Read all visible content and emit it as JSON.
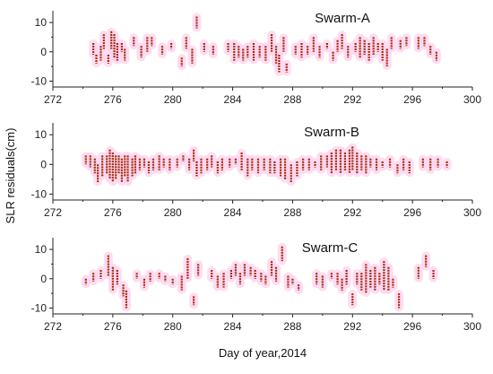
{
  "chart_data": {
    "type": "scatter",
    "xlabel": "Day of year,2014",
    "ylabel": "SLR residuals(cm)",
    "xlim": [
      272,
      300
    ],
    "ylim": [
      -12,
      14
    ],
    "xticks": [
      272,
      276,
      280,
      284,
      288,
      292,
      296,
      300
    ],
    "yticks": [
      -10,
      0,
      10
    ],
    "grid": false,
    "colors": {
      "points": "#a52a0a",
      "halo": "#ffd6f0",
      "axis": "#222222"
    },
    "panels": [
      {
        "title": "Swarm-A",
        "segments": [
          [
            274.7,
            -1,
            3
          ],
          [
            274.9,
            -4,
            -1
          ],
          [
            275.2,
            -3,
            2
          ],
          [
            275.4,
            1,
            6
          ],
          [
            275.7,
            -4,
            -1
          ],
          [
            275.9,
            1,
            7
          ],
          [
            276.1,
            -2,
            6
          ],
          [
            276.3,
            -3,
            3
          ],
          [
            276.6,
            0,
            3
          ],
          [
            276.8,
            -3,
            1
          ],
          [
            277.4,
            2,
            5
          ],
          [
            277.9,
            -2,
            2
          ],
          [
            278.3,
            0,
            5
          ],
          [
            278.6,
            2,
            5
          ],
          [
            279.3,
            -1,
            2
          ],
          [
            279.9,
            1,
            3
          ],
          [
            280.6,
            -5,
            -2
          ],
          [
            280.9,
            1,
            5
          ],
          [
            281.3,
            -4,
            1
          ],
          [
            281.6,
            8,
            12
          ],
          [
            282.1,
            0,
            3
          ],
          [
            282.7,
            -1,
            2
          ],
          [
            283.7,
            0,
            3
          ],
          [
            284.1,
            -3,
            3
          ],
          [
            284.4,
            -2,
            2
          ],
          [
            284.7,
            -3,
            1
          ],
          [
            285.0,
            -2,
            2
          ],
          [
            285.4,
            -3,
            3
          ],
          [
            285.8,
            -2,
            2
          ],
          [
            286.2,
            -3,
            2
          ],
          [
            286.6,
            0,
            6
          ],
          [
            286.9,
            -4,
            2
          ],
          [
            287.1,
            -7,
            -1
          ],
          [
            287.4,
            0,
            5
          ],
          [
            287.6,
            -7,
            -4
          ],
          [
            288.2,
            -1,
            2
          ],
          [
            288.6,
            -2,
            3
          ],
          [
            289.0,
            -1,
            2
          ],
          [
            289.4,
            0,
            5
          ],
          [
            289.8,
            -2,
            2
          ],
          [
            290.3,
            1,
            3
          ],
          [
            290.7,
            -3,
            0
          ],
          [
            291.0,
            0,
            4
          ],
          [
            291.3,
            1,
            6
          ],
          [
            291.7,
            -2,
            2
          ],
          [
            292.2,
            0,
            3
          ],
          [
            292.5,
            -2,
            5
          ],
          [
            292.8,
            -1,
            4
          ],
          [
            293.1,
            -3,
            3
          ],
          [
            293.4,
            -1,
            5
          ],
          [
            293.7,
            0,
            3
          ],
          [
            294.0,
            -3,
            3
          ],
          [
            294.3,
            -5,
            1
          ],
          [
            294.6,
            1,
            5
          ],
          [
            295.2,
            1,
            4
          ],
          [
            295.6,
            2,
            5
          ],
          [
            296.4,
            1,
            5
          ],
          [
            296.8,
            2,
            5
          ],
          [
            297.2,
            -1,
            2
          ],
          [
            297.6,
            -3,
            0
          ]
        ]
      },
      {
        "title": "Swarm-B",
        "segments": [
          [
            274.2,
            0,
            3
          ],
          [
            274.5,
            -1,
            3
          ],
          [
            274.8,
            -3,
            2
          ],
          [
            275.0,
            -6,
            0
          ],
          [
            275.3,
            -4,
            3
          ],
          [
            275.6,
            -3,
            3
          ],
          [
            275.8,
            -5,
            5
          ],
          [
            276.0,
            -6,
            4
          ],
          [
            276.2,
            -5,
            3
          ],
          [
            276.4,
            -3,
            3
          ],
          [
            276.6,
            -6,
            2
          ],
          [
            276.8,
            -4,
            3
          ],
          [
            277.0,
            -6,
            3
          ],
          [
            277.3,
            -4,
            2
          ],
          [
            277.5,
            -3,
            3
          ],
          [
            277.8,
            -2,
            2
          ],
          [
            278.1,
            -1,
            2
          ],
          [
            278.4,
            -3,
            1
          ],
          [
            278.7,
            -2,
            2
          ],
          [
            279.1,
            -2,
            3
          ],
          [
            279.4,
            -1,
            2
          ],
          [
            279.8,
            -2,
            2
          ],
          [
            280.3,
            -1,
            2
          ],
          [
            280.7,
            1,
            3
          ],
          [
            281.1,
            -2,
            2
          ],
          [
            281.4,
            1,
            5
          ],
          [
            281.6,
            -4,
            1
          ],
          [
            281.9,
            -3,
            2
          ],
          [
            282.3,
            -2,
            2
          ],
          [
            282.6,
            -1,
            3
          ],
          [
            283.0,
            -3,
            1
          ],
          [
            283.3,
            -2,
            2
          ],
          [
            283.8,
            -1,
            2
          ],
          [
            284.2,
            0,
            2
          ],
          [
            284.6,
            -2,
            4
          ],
          [
            285.0,
            -4,
            2
          ],
          [
            285.3,
            -2,
            2
          ],
          [
            285.7,
            -3,
            2
          ],
          [
            286.1,
            -2,
            2
          ],
          [
            286.5,
            -3,
            2
          ],
          [
            286.8,
            -3,
            1
          ],
          [
            287.2,
            -4,
            2
          ],
          [
            287.5,
            -5,
            2
          ],
          [
            287.9,
            -6,
            0
          ],
          [
            288.3,
            -4,
            1
          ],
          [
            288.7,
            -2,
            2
          ],
          [
            289.1,
            -2,
            2
          ],
          [
            289.5,
            -1,
            1
          ],
          [
            289.9,
            -2,
            3
          ],
          [
            290.3,
            -1,
            3
          ],
          [
            290.6,
            -3,
            4
          ],
          [
            290.9,
            -2,
            5
          ],
          [
            291.2,
            -3,
            5
          ],
          [
            291.5,
            -2,
            4
          ],
          [
            291.8,
            -3,
            5
          ],
          [
            292.0,
            -2,
            6
          ],
          [
            292.3,
            -3,
            4
          ],
          [
            292.6,
            -2,
            3
          ],
          [
            292.9,
            -3,
            3
          ],
          [
            293.2,
            -1,
            2
          ],
          [
            293.6,
            -2,
            2
          ],
          [
            294.0,
            -1,
            1
          ],
          [
            294.5,
            -1,
            2
          ],
          [
            295.0,
            -3,
            0
          ],
          [
            295.4,
            -2,
            2
          ],
          [
            295.8,
            -3,
            1
          ],
          [
            296.7,
            -1,
            2
          ],
          [
            297.2,
            -2,
            2
          ],
          [
            297.7,
            -1,
            2
          ],
          [
            298.3,
            -1,
            1
          ]
        ]
      },
      {
        "title": "Swarm-C",
        "segments": [
          [
            274.2,
            -2,
            0
          ],
          [
            274.7,
            -1,
            2
          ],
          [
            275.2,
            0,
            3
          ],
          [
            275.7,
            1,
            8
          ],
          [
            276.0,
            -4,
            4
          ],
          [
            276.3,
            -2,
            3
          ],
          [
            276.7,
            -6,
            -2
          ],
          [
            276.9,
            -10,
            -4
          ],
          [
            277.6,
            0,
            2
          ],
          [
            278.1,
            -3,
            0
          ],
          [
            278.5,
            -1,
            2
          ],
          [
            279.1,
            0,
            2
          ],
          [
            279.5,
            -1,
            1
          ],
          [
            280.0,
            -2,
            0
          ],
          [
            280.6,
            -4,
            1
          ],
          [
            281.0,
            0,
            7
          ],
          [
            281.4,
            -9,
            -6
          ],
          [
            281.7,
            1,
            5
          ],
          [
            282.6,
            0,
            3
          ],
          [
            283.0,
            -3,
            1
          ],
          [
            283.4,
            -3,
            2
          ],
          [
            283.9,
            0,
            3
          ],
          [
            284.2,
            1,
            5
          ],
          [
            284.5,
            -2,
            2
          ],
          [
            284.8,
            1,
            5
          ],
          [
            285.2,
            1,
            4
          ],
          [
            285.5,
            0,
            3
          ],
          [
            285.9,
            -1,
            2
          ],
          [
            286.2,
            -2,
            1
          ],
          [
            286.6,
            1,
            6
          ],
          [
            286.9,
            -1,
            4
          ],
          [
            287.3,
            6,
            11
          ],
          [
            287.7,
            -3,
            1
          ],
          [
            288.0,
            -2,
            0
          ],
          [
            288.4,
            -4,
            -2
          ],
          [
            289.6,
            -2,
            2
          ],
          [
            290.0,
            -3,
            1
          ],
          [
            290.6,
            0,
            2
          ],
          [
            291.0,
            -2,
            2
          ],
          [
            291.3,
            -4,
            0
          ],
          [
            291.6,
            -2,
            3
          ],
          [
            292.0,
            -9,
            -5
          ],
          [
            292.3,
            -2,
            2
          ],
          [
            292.6,
            -4,
            2
          ],
          [
            292.9,
            -5,
            5
          ],
          [
            293.2,
            -3,
            3
          ],
          [
            293.5,
            -4,
            4
          ],
          [
            293.8,
            -2,
            2
          ],
          [
            294.1,
            -4,
            6
          ],
          [
            294.4,
            -4,
            4
          ],
          [
            294.7,
            -3,
            0
          ],
          [
            295.1,
            -10,
            -5
          ],
          [
            296.4,
            0,
            4
          ],
          [
            296.9,
            4,
            8
          ],
          [
            297.4,
            0,
            3
          ]
        ]
      }
    ]
  }
}
